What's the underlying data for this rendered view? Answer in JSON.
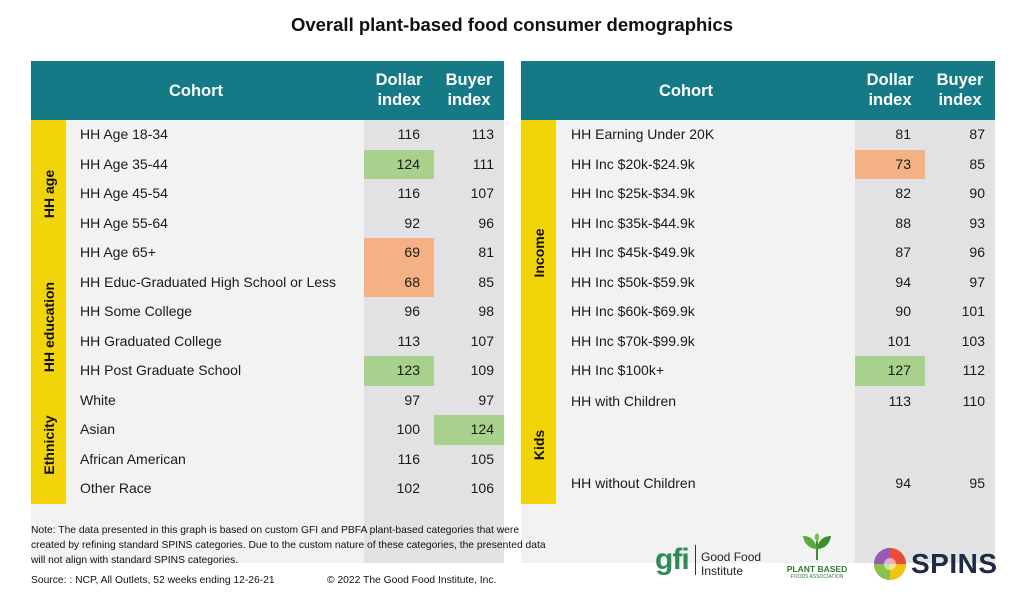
{
  "title": "Overall plant-based food consumer demographics",
  "colors": {
    "header": "#167a86",
    "group": "#f2d40a",
    "green": "#a9d18e",
    "orange": "#f4b183"
  },
  "chart_data": [
    {
      "type": "table",
      "columns": [
        "Cohort",
        "Dollar index",
        "Buyer index"
      ],
      "groups": [
        {
          "label": "HH age",
          "rows": [
            {
              "cohort": "HH Age 18-34",
              "dollar": 116,
              "buyer": 113
            },
            {
              "cohort": "HH Age 35-44",
              "dollar": 124,
              "buyer": 111,
              "dollar_hl": "green"
            },
            {
              "cohort": "HH Age 45-54",
              "dollar": 116,
              "buyer": 107
            },
            {
              "cohort": "HH Age 55-64",
              "dollar": 92,
              "buyer": 96
            },
            {
              "cohort": "HH Age 65+",
              "dollar": 69,
              "buyer": 81,
              "dollar_hl": "orange"
            }
          ]
        },
        {
          "label": "HH education",
          "rows": [
            {
              "cohort": "HH Educ-Graduated High School or Less",
              "dollar": 68,
              "buyer": 85,
              "dollar_hl": "orange"
            },
            {
              "cohort": "HH Some College",
              "dollar": 96,
              "buyer": 98
            },
            {
              "cohort": "HH Graduated College",
              "dollar": 113,
              "buyer": 107
            },
            {
              "cohort": "HH Post Graduate School",
              "dollar": 123,
              "buyer": 109,
              "dollar_hl": "green"
            }
          ]
        },
        {
          "label": "Ethnicity",
          "rows": [
            {
              "cohort": "White",
              "dollar": 97,
              "buyer": 97
            },
            {
              "cohort": "Asian",
              "dollar": 100,
              "buyer": 124,
              "buyer_hl": "green"
            },
            {
              "cohort": "African American",
              "dollar": 116,
              "buyer": 105
            },
            {
              "cohort": "Other Race",
              "dollar": 102,
              "buyer": 106
            }
          ]
        }
      ]
    },
    {
      "type": "table",
      "columns": [
        "Cohort",
        "Dollar index",
        "Buyer index"
      ],
      "groups": [
        {
          "label": "Income",
          "rows": [
            {
              "cohort": "HH Earning Under 20K",
              "dollar": 81,
              "buyer": 87
            },
            {
              "cohort": "HH Inc $20k-$24.9k",
              "dollar": 73,
              "buyer": 85,
              "dollar_hl": "orange"
            },
            {
              "cohort": "HH Inc $25k-$34.9k",
              "dollar": 82,
              "buyer": 90
            },
            {
              "cohort": "HH Inc $35k-$44.9k",
              "dollar": 88,
              "buyer": 93
            },
            {
              "cohort": "HH Inc $45k-$49.9k",
              "dollar": 87,
              "buyer": 96
            },
            {
              "cohort": "HH Inc $50k-$59.9k",
              "dollar": 94,
              "buyer": 97
            },
            {
              "cohort": "HH Inc $60k-$69.9k",
              "dollar": 90,
              "buyer": 101
            },
            {
              "cohort": "HH Inc $70k-$99.9k",
              "dollar": 101,
              "buyer": 103
            },
            {
              "cohort": "HH Inc $100k+",
              "dollar": 127,
              "buyer": 112,
              "dollar_hl": "green"
            }
          ]
        },
        {
          "label": "Kids",
          "rows": [
            {
              "cohort": "HH with Children",
              "dollar": 113,
              "buyer": 110
            },
            {
              "cohort": "HH without Children",
              "dollar": 94,
              "buyer": 95
            }
          ]
        }
      ]
    }
  ],
  "note": "Note: The data presented in this graph is based on custom GFI and PBFA plant-based categories that were created by refining standard SPINS categories. Due to the custom nature of these categories, the presented data will not align with standard SPINS categories.",
  "source": "Source: : NCP, All Outlets, 52 weeks ending 12-26-21",
  "copyright": "© 2022 The Good Food Institute, Inc.",
  "logos": {
    "gfi": {
      "mark": "gfi",
      "line1": "Good Food",
      "line2": "Institute"
    },
    "pbfa": {
      "line1": "PLANT BASED",
      "line2": "FOODS ASSOCIATION"
    },
    "spins": {
      "text": "SPINS"
    }
  }
}
